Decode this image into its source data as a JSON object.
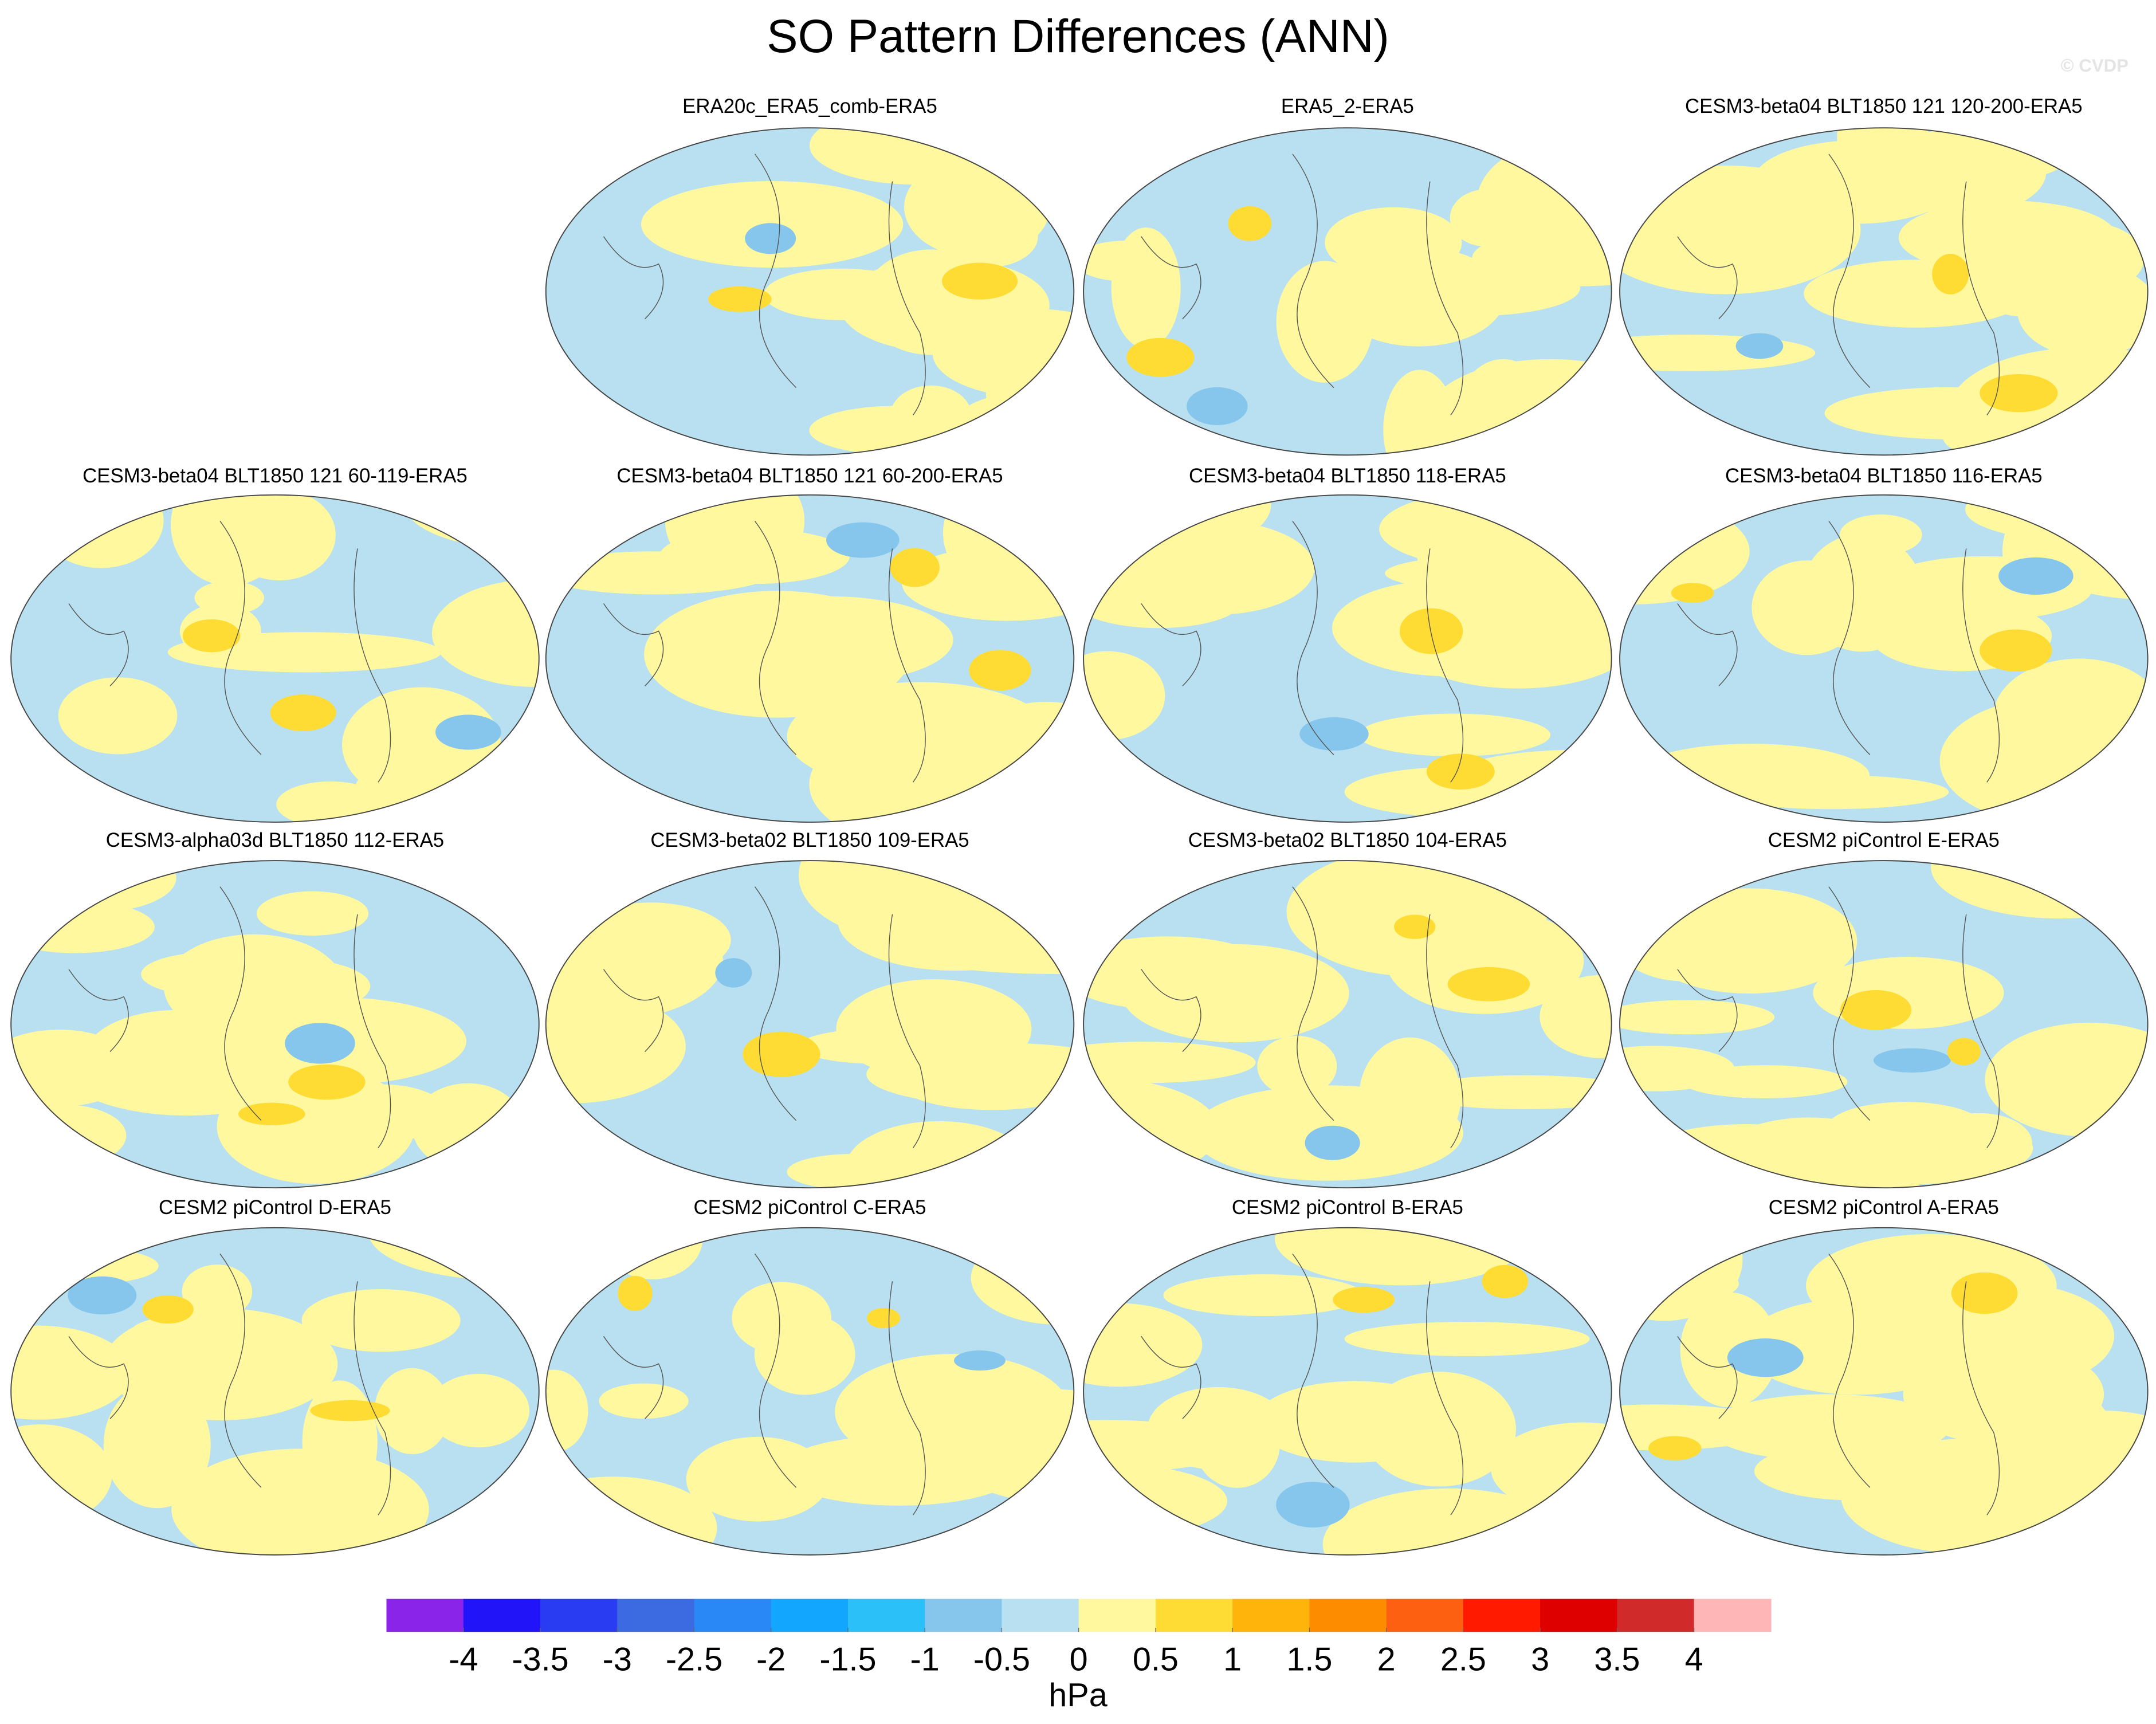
{
  "title": "SO Pattern Differences (ANN)",
  "watermark": "© CVDP",
  "panels": [
    {
      "title": "ERA20c_ERA5_comb-ERA5"
    },
    {
      "title": "ERA5_2-ERA5"
    },
    {
      "title": "CESM3-beta04 BLT1850 121 120-200-ERA5"
    },
    {
      "title": "CESM3-beta04 BLT1850 121 60-119-ERA5"
    },
    {
      "title": "CESM3-beta04 BLT1850 121 60-200-ERA5"
    },
    {
      "title": "CESM3-beta04 BLT1850 118-ERA5"
    },
    {
      "title": "CESM3-beta04 BLT1850 116-ERA5"
    },
    {
      "title": "CESM3-alpha03d BLT1850 112-ERA5"
    },
    {
      "title": "CESM3-beta02 BLT1850 109-ERA5"
    },
    {
      "title": "CESM3-beta02 BLT1850 104-ERA5"
    },
    {
      "title": "CESM2 piControl E-ERA5"
    },
    {
      "title": "CESM2 piControl D-ERA5"
    },
    {
      "title": "CESM2 piControl C-ERA5"
    },
    {
      "title": "CESM2 piControl B-ERA5"
    },
    {
      "title": "CESM2 piControl A-ERA5"
    }
  ],
  "colorbar": {
    "colors": [
      "#8a24e8",
      "#2214f8",
      "#2a3cf2",
      "#3c6ae0",
      "#2a88f6",
      "#12a6fe",
      "#2cc0f8",
      "#86c6ec",
      "#b8e0f0",
      "#fff89e",
      "#fedc34",
      "#feb40a",
      "#fe8c00",
      "#fe6012",
      "#ff1a00",
      "#de0000",
      "#d02a2a",
      "#ffb6b6"
    ],
    "ticks": [
      -4,
      -3.5,
      -3,
      -2.5,
      -2,
      -1.5,
      -1,
      -0.5,
      0,
      0.5,
      1,
      1.5,
      2,
      2.5,
      3,
      3.5,
      4
    ],
    "label": "hPa"
  }
}
